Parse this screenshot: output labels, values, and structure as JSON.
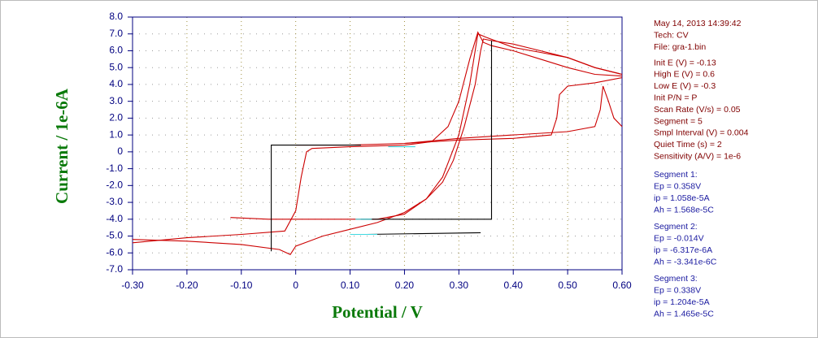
{
  "chart_data": {
    "type": "line",
    "xlabel": "Potential / V",
    "ylabel": "Current / 1e-6A",
    "xlim": [
      -0.3,
      0.6
    ],
    "ylim": [
      -7,
      8
    ],
    "xticks": [
      {
        "value": -0.3,
        "label": "-0.30"
      },
      {
        "value": -0.2,
        "label": "-0.20"
      },
      {
        "value": -0.1,
        "label": "-0.10"
      },
      0,
      {
        "value": 0.1,
        "label": "0.10"
      },
      {
        "value": 0.2,
        "label": "0.20"
      },
      {
        "value": 0.3,
        "label": "0.30"
      },
      {
        "value": 0.4,
        "label": "0.40"
      },
      {
        "value": 0.5,
        "label": "0.50"
      },
      {
        "value": 0.6,
        "label": "0.60"
      }
    ],
    "yticks": [
      {
        "value": -7,
        "label": "-7.0"
      },
      {
        "value": -6,
        "label": "-6.0"
      },
      {
        "value": -5,
        "label": "-5.0"
      },
      {
        "value": -4,
        "label": "-4.0"
      },
      {
        "value": -3,
        "label": "-3.0"
      },
      {
        "value": -2,
        "label": "-2.0"
      },
      {
        "value": -1,
        "label": "-1.0"
      },
      0,
      {
        "value": 1,
        "label": "1.0"
      },
      {
        "value": 2,
        "label": "2.0"
      },
      {
        "value": 3,
        "label": "3.0"
      },
      {
        "value": 4,
        "label": "4.0"
      },
      {
        "value": 5,
        "label": "5.0"
      },
      {
        "value": 6,
        "label": "6.0"
      },
      {
        "value": 7,
        "label": "7.0"
      },
      {
        "value": 8,
        "label": "8.0"
      }
    ],
    "grid": true,
    "series": [
      {
        "color": "#cc0000",
        "x": [
          -0.3,
          -0.2,
          -0.1,
          -0.02,
          0.0,
          0.01,
          0.02,
          0.03,
          0.1,
          0.2,
          0.25,
          0.28,
          0.3,
          0.32,
          0.335,
          0.345,
          0.36,
          0.4,
          0.45,
          0.5,
          0.55,
          0.6
        ],
        "values": [
          -5.4,
          -5.1,
          -4.9,
          -4.7,
          -3.5,
          -1.5,
          0.0,
          0.2,
          0.3,
          0.4,
          0.6,
          1.5,
          3.0,
          5.5,
          7.1,
          6.5,
          6.3,
          6.0,
          5.5,
          5.0,
          4.6,
          4.5
        ]
      },
      {
        "color": "#cc0000",
        "x": [
          0.6,
          0.55,
          0.5,
          0.45,
          0.4,
          0.36,
          0.345,
          0.34,
          0.33,
          0.31,
          0.29,
          0.27,
          0.24,
          0.2,
          0.15,
          0.1,
          0.05,
          0.0,
          -0.01,
          -0.03,
          -0.1,
          -0.2,
          -0.3
        ],
        "values": [
          4.6,
          5.0,
          5.6,
          6.0,
          6.4,
          6.6,
          6.7,
          6.0,
          4.0,
          1.5,
          -0.5,
          -1.8,
          -2.8,
          -3.6,
          -4.2,
          -4.6,
          -5.0,
          -5.6,
          -6.1,
          -5.8,
          -5.5,
          -5.3,
          -5.2
        ]
      },
      {
        "color": "#cc0000",
        "x": [
          -0.12,
          -0.05,
          0.05,
          0.15,
          0.2,
          0.24,
          0.27,
          0.3,
          0.32,
          0.335,
          0.35,
          0.4,
          0.45,
          0.5,
          0.55,
          0.6
        ],
        "values": [
          -3.9,
          -4.0,
          -4.0,
          -4.0,
          -3.7,
          -2.8,
          -1.5,
          1.0,
          4.0,
          7.0,
          6.8,
          6.2,
          5.9,
          5.6,
          5.0,
          4.6
        ]
      },
      {
        "color": "#cc0000",
        "x": [
          0.6,
          0.55,
          0.5,
          0.485,
          0.48,
          0.47,
          0.4,
          0.3,
          0.2,
          0.1,
          0.0
        ],
        "values": [
          4.4,
          4.1,
          3.9,
          3.4,
          2.0,
          1.0,
          0.8,
          0.7,
          0.5,
          0.4,
          0.4
        ]
      },
      {
        "color": "#cc0000",
        "x": [
          0.2,
          0.3,
          0.4,
          0.5,
          0.55,
          0.56,
          0.565,
          0.575,
          0.585,
          0.6
        ],
        "values": [
          0.5,
          0.8,
          1.0,
          1.2,
          1.5,
          2.5,
          3.9,
          3.0,
          2.0,
          1.5
        ]
      },
      {
        "color": "#000000",
        "x": [
          -0.045,
          -0.045,
          0.12
        ],
        "values": [
          -5.9,
          0.4,
          0.4
        ]
      },
      {
        "color": "#000000",
        "x": [
          0.12,
          0.36,
          0.36
        ],
        "values": [
          -4.0,
          -4.0,
          6.6
        ]
      },
      {
        "color": "#000000",
        "x": [
          0.13,
          0.34
        ],
        "values": [
          -4.9,
          -4.8
        ]
      },
      {
        "color": "#40d8e0",
        "x": [
          0.17,
          0.22
        ],
        "values": [
          0.3,
          0.3
        ]
      },
      {
        "color": "#40d8e0",
        "x": [
          0.11,
          0.14
        ],
        "values": [
          -4.0,
          -4.0
        ]
      },
      {
        "color": "#40d8e0",
        "x": [
          0.1,
          0.15
        ],
        "values": [
          -4.9,
          -4.9
        ]
      }
    ],
    "info_header": [
      "May 14, 2013   14:39:42",
      "Tech: CV",
      "File: gra-1.bin"
    ],
    "info_params": [
      "Init E (V) = -0.13",
      "High E (V) = 0.6",
      "Low E (V) = -0.3",
      "Init P/N = P",
      "Scan Rate (V/s) = 0.05",
      "Segment = 5",
      "Smpl Interval (V) = 0.004",
      "Quiet Time (s) = 2",
      "Sensitivity (A/V) = 1e-6"
    ],
    "segments": [
      {
        "title": "Segment 1:",
        "lines": [
          "Ep = 0.358V",
          "ip = 1.058e-5A",
          "Ah = 1.568e-5C"
        ]
      },
      {
        "title": "Segment 2:",
        "lines": [
          "Ep = -0.014V",
          "ip = -6.317e-6A",
          "Ah = -3.341e-6C"
        ]
      },
      {
        "title": "Segment 3:",
        "lines": [
          "Ep = 0.338V",
          "ip = 1.204e-5A",
          "Ah = 1.465e-5C"
        ]
      }
    ]
  }
}
